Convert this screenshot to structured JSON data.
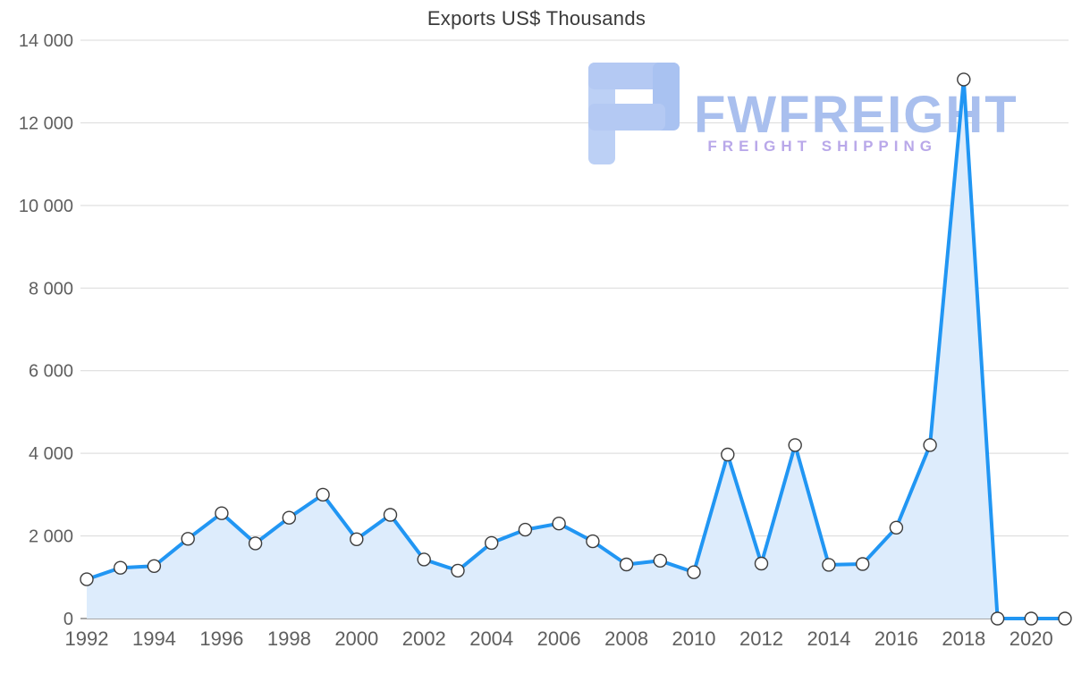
{
  "chart_data": {
    "type": "line",
    "title": "Exports US$ Thousands",
    "xlabel": "",
    "ylabel": "",
    "x": [
      1992,
      1993,
      1994,
      1995,
      1996,
      1997,
      1998,
      1999,
      2000,
      2001,
      2002,
      2003,
      2004,
      2005,
      2006,
      2007,
      2008,
      2009,
      2010,
      2011,
      2012,
      2013,
      2014,
      2015,
      2016,
      2017,
      2018,
      2019,
      2020,
      2021
    ],
    "values": [
      950,
      1230,
      1270,
      1930,
      2550,
      1820,
      2440,
      3000,
      1920,
      2510,
      1430,
      1160,
      1830,
      2150,
      2300,
      1870,
      1310,
      1400,
      1120,
      3970,
      1330,
      4200,
      1300,
      1320,
      2200,
      4200,
      13050,
      0,
      0,
      0
    ],
    "ylim": [
      0,
      14000
    ],
    "yticks": [
      0,
      2000,
      4000,
      6000,
      8000,
      10000,
      12000,
      14000
    ],
    "ytick_labels": [
      "0",
      "2 000",
      "4 000",
      "6 000",
      "8 000",
      "10 000",
      "12 000",
      "14 000"
    ],
    "xticks": [
      1992,
      1994,
      1996,
      1998,
      2000,
      2002,
      2004,
      2006,
      2008,
      2010,
      2012,
      2014,
      2016,
      2018,
      2020
    ],
    "grid": "horizontal",
    "legend": "none",
    "area_fill": true,
    "markers": true
  },
  "watermark": {
    "brand": "FWFREIGHT",
    "tagline": "FREIGHT SHIPPING"
  },
  "colors": {
    "line": "#2196f3",
    "area_fill": "#ddecfc",
    "marker_fill": "#ffffff",
    "marker_stroke": "#3c3c3c",
    "grid": "#d9d9d9",
    "baseline": "#8a8a8a",
    "axis_text": "#5f5f5f",
    "title_text": "#3a3a3a",
    "watermark_logo_light": "#bcd0f5",
    "watermark_logo_mid": "#b4c9f3",
    "watermark_logo_dark": "#a9c2f1",
    "watermark_brand_text": "#a9bfee",
    "watermark_tagline_text": "#b9a8e9"
  }
}
